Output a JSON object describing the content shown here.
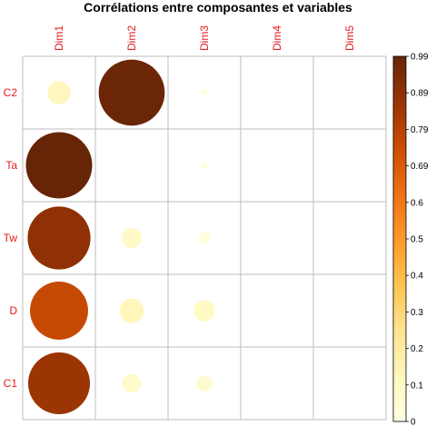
{
  "chart_data": {
    "type": "heatmap",
    "title": "Corrélations entre composantes et variables",
    "columns": [
      "Dim1",
      "Dim2",
      "Dim3",
      "Dim4",
      "Dim5"
    ],
    "rows": [
      "C2",
      "Ta",
      "Tw",
      "D",
      "C1"
    ],
    "values": [
      [
        0.12,
        0.98,
        0.01,
        0.0,
        0.0
      ],
      [
        0.99,
        0.0,
        0.01,
        0.0,
        0.0
      ],
      [
        0.89,
        0.09,
        0.03,
        0.0,
        0.0
      ],
      [
        0.76,
        0.13,
        0.1,
        0.0,
        0.0
      ],
      [
        0.86,
        0.08,
        0.06,
        0.0,
        0.0
      ]
    ],
    "colorbar": {
      "min": 0,
      "max": 0.99,
      "ticks": [
        "0",
        "0.1",
        "0.2",
        "0.3",
        "0.4",
        "0.5",
        "0.6",
        "0.69",
        "0.79",
        "0.89",
        "0.99"
      ],
      "palette": [
        "#FFFFE5",
        "#FFF7BC",
        "#FEE391",
        "#FEC44F",
        "#FE9929",
        "#EC7014",
        "#CC4C02",
        "#993404",
        "#662506"
      ]
    },
    "label_color": "#E41A1C",
    "grid_color": "#BEBEBE"
  }
}
